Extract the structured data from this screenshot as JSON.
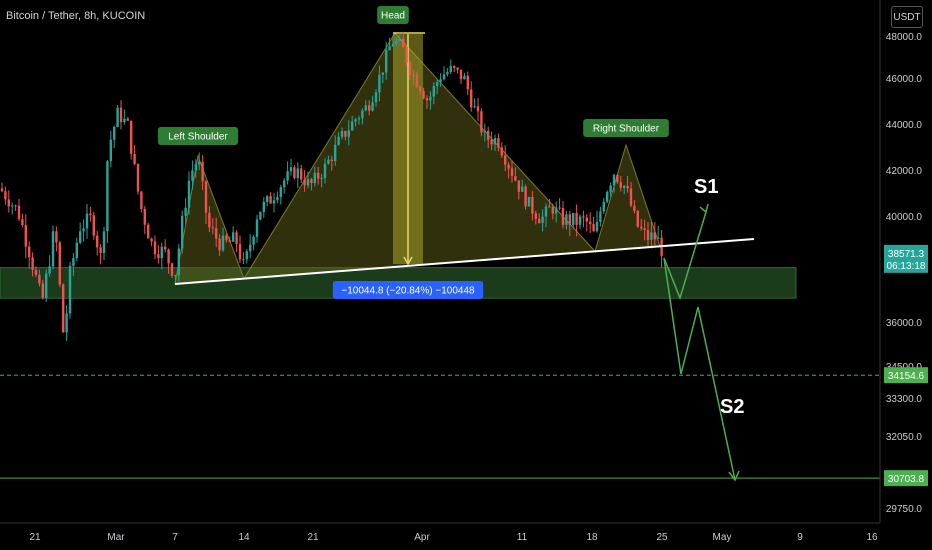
{
  "header": {
    "title": "Bitcoin / Tether, 8h, KUCOIN",
    "unit_button": "USDT"
  },
  "chart_data": {
    "type": "candlestick",
    "instrument": "Bitcoin / Tether",
    "interval": "8h",
    "exchange": "KUCOIN",
    "ylim": [
      29200,
      49200
    ],
    "yticks": [
      {
        "label": "48000.0",
        "value": 48000
      },
      {
        "label": "46000.0",
        "value": 46000
      },
      {
        "label": "44000.0",
        "value": 44000
      },
      {
        "label": "42000.0",
        "value": 42000
      },
      {
        "label": "40000.0",
        "value": 40000
      },
      {
        "label": "36000.0",
        "value": 36000
      },
      {
        "label": "34500.0",
        "value": 34500
      },
      {
        "label": "33300.0",
        "value": 33300
      },
      {
        "label": "32050.0",
        "value": 32050
      },
      {
        "label": "29750.0",
        "value": 29750
      }
    ],
    "xticks": [
      "21",
      "Mar",
      "7",
      "14",
      "21",
      "Apr",
      "11",
      "18",
      "25",
      "May",
      "9",
      "16"
    ],
    "price_tags": [
      {
        "label": "38571.3",
        "sub": "06:13:18",
        "value": 38571.3,
        "color": "#26a69a"
      },
      {
        "label": "34154.6",
        "value": 34154.6,
        "color": "#4caf50"
      },
      {
        "label": "30703.8",
        "value": 30703.8,
        "color": "#4caf50"
      }
    ],
    "horizontal_levels": [
      {
        "value": 34154.6,
        "style": "dashed",
        "color": "#4caf50"
      },
      {
        "value": 30703.8,
        "style": "solid",
        "color": "#4caf50"
      }
    ],
    "support_zone": {
      "from": 36900,
      "to": 38050,
      "color": "#1e4620"
    },
    "pattern": "Head and Shoulders",
    "labels": {
      "left_shoulder": "Left Shoulder",
      "head": "Head",
      "right_shoulder": "Right Shoulder",
      "measure": "−10044.8 (−20.84%) −100448",
      "s1": "S1",
      "s2": "S2"
    }
  }
}
